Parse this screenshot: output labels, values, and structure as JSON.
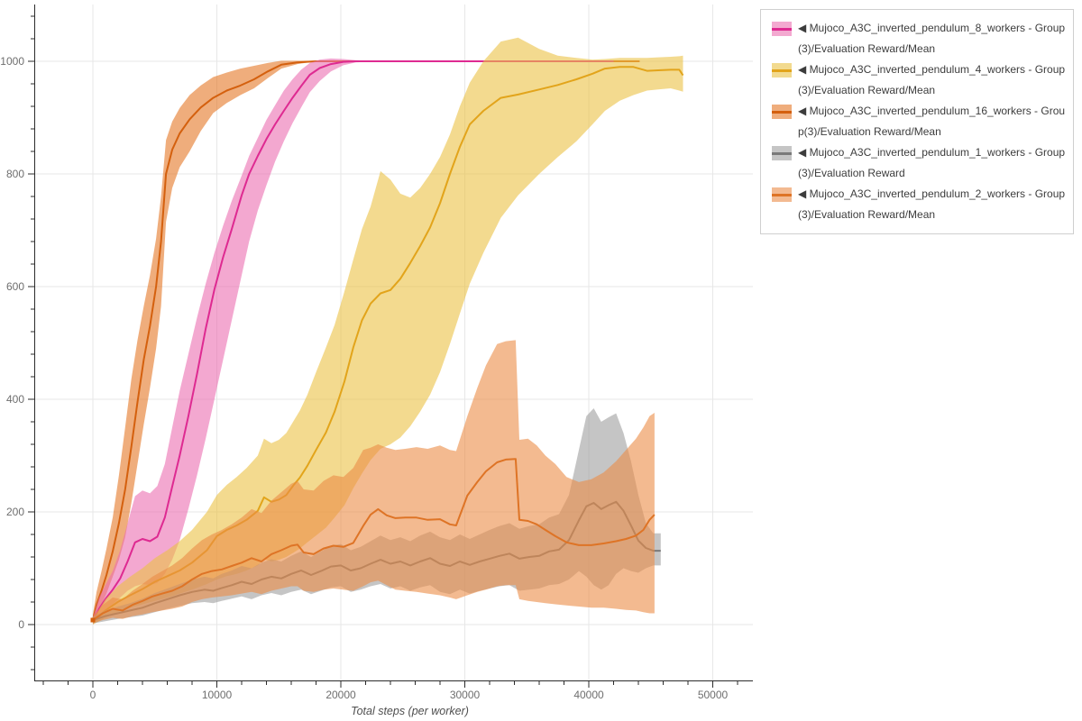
{
  "figure": {
    "background": "#ffffff",
    "grid_color": "#e7e7e7",
    "spine_color": "#2b2b2b",
    "tick_color": "#2b2b2b",
    "tick_label_color": "#6e6e6e",
    "axis_title_color": "#4f4f4f"
  },
  "legend": {
    "items": [
      {
        "id": "8_workers",
        "label": "◀ Mujoco_A3C_inverted_pendulum_8_workers - Group(3)/Evaluation Reward/Mean",
        "line_color": "#DE2A91",
        "band_color": "#F3A9D0"
      },
      {
        "id": "4_workers",
        "label": "◀ Mujoco_A3C_inverted_pendulum_4_workers - Group(3)/Evaluation Reward/Mean",
        "line_color": "#E2A41B",
        "band_color": "#F2DA8F"
      },
      {
        "id": "16_workers",
        "label": "◀ Mujoco_A3C_inverted_pendulum_16_workers - Group(3)/Evaluation Reward/Mean",
        "line_color": "#D4600E",
        "band_color": "#EFAD7C"
      },
      {
        "id": "1_workers",
        "label": "◀ Mujoco_A3C_inverted_pendulum_1_workers - Group(3)/Evaluation Reward",
        "line_color": "#7A7A7A",
        "band_color": "#C5C5C5"
      },
      {
        "id": "2_workers",
        "label": "◀ Mujoco_A3C_inverted_pendulum_2_workers - Group(3)/Evaluation Reward/Mean",
        "line_color": "#DE7426",
        "band_color": "#F3BA91"
      }
    ]
  },
  "chart_data": {
    "type": "line",
    "title": "",
    "xlabel": "Total steps (per worker)",
    "ylabel": "",
    "xlim": [
      -4700,
      53300
    ],
    "ylim": [
      -99,
      1100
    ],
    "x_ticks": [
      0,
      10000,
      20000,
      30000,
      40000,
      50000
    ],
    "x_tick_labels": [
      "0",
      "10000",
      "20000",
      "30000",
      "40000",
      "50000"
    ],
    "x_minor_step": 2000,
    "y_ticks": [
      0,
      200,
      400,
      600,
      800,
      1000
    ],
    "y_tick_labels": [
      "0",
      "200",
      "400",
      "600",
      "800",
      "1000"
    ],
    "y_minor_step": 40,
    "grid": true,
    "legend_position": "outside-right",
    "band_opacity": 0.6,
    "z_order": [
      2,
      0,
      1,
      3,
      4
    ],
    "origin_marker": {
      "x": 0,
      "y": 8,
      "color": "#D4600E"
    },
    "series": [
      {
        "id": "8_workers",
        "name": "Mujoco_A3C_inverted_pendulum_8_workers - Group(3)/Evaluation Reward/Mean",
        "color": "#DE2A91",
        "band_fill": "#EB6EB1",
        "x": [
          0,
          500,
          1000,
          1600,
          2200,
          2800,
          3400,
          4000,
          4600,
          5200,
          5800,
          6400,
          7000,
          7700,
          8400,
          9100,
          9800,
          10500,
          11200,
          12000,
          12600,
          13300,
          14000,
          14700,
          15400,
          16100,
          16800,
          17500,
          18300,
          19200,
          20200,
          21200,
          23000,
          27000,
          31000,
          35000,
          39000,
          42000
        ],
        "mean": [
          5,
          28,
          45,
          62,
          82,
          112,
          146,
          152,
          148,
          156,
          190,
          245,
          300,
          370,
          445,
          525,
          595,
          652,
          702,
          762,
          800,
          832,
          862,
          888,
          912,
          935,
          956,
          976,
          988,
          995,
          999,
          1000,
          1000,
          1000,
          1000,
          1000,
          1000,
          1000
        ],
        "low": [
          0,
          14,
          26,
          36,
          48,
          60,
          68,
          72,
          70,
          74,
          90,
          115,
          150,
          205,
          265,
          330,
          400,
          470,
          540,
          620,
          680,
          735,
          780,
          822,
          858,
          890,
          918,
          945,
          965,
          982,
          993,
          998,
          1000,
          1000,
          1000,
          1000,
          1000,
          1000
        ],
        "high": [
          12,
          48,
          70,
          95,
          132,
          180,
          228,
          238,
          233,
          246,
          285,
          350,
          415,
          480,
          545,
          605,
          660,
          708,
          752,
          797,
          832,
          864,
          896,
          922,
          948,
          968,
          985,
          997,
          1003,
          1005,
          1004,
          1002,
          1000,
          1000,
          1000,
          1000,
          1000,
          1000
        ]
      },
      {
        "id": "4_workers",
        "name": "Mujoco_A3C_inverted_pendulum_4_workers - Group(3)/Evaluation Reward/Mean",
        "color": "#E2A41B",
        "band_fill": "#EBC144",
        "x": [
          0,
          1000,
          2000,
          3000,
          4000,
          5000,
          6000,
          7000,
          8000,
          9200,
          10000,
          10800,
          11600,
          12400,
          13300,
          13800,
          14400,
          15000,
          15600,
          16200,
          16700,
          17300,
          18000,
          18800,
          19500,
          20300,
          21000,
          21700,
          22400,
          23200,
          24000,
          24800,
          25600,
          26400,
          27200,
          28000,
          28800,
          29600,
          30400,
          31500,
          32900,
          34300,
          36000,
          37500,
          39000,
          40300,
          41300,
          42500,
          43600,
          44700,
          45600,
          46600,
          47300,
          47600
        ],
        "mean": [
          5,
          25,
          40,
          52,
          63,
          76,
          86,
          96,
          110,
          132,
          157,
          168,
          176,
          186,
          202,
          226,
          218,
          222,
          230,
          248,
          261,
          282,
          310,
          341,
          378,
          432,
          492,
          540,
          570,
          588,
          594,
          614,
          642,
          672,
          705,
          748,
          800,
          848,
          888,
          912,
          935,
          941,
          950,
          958,
          968,
          978,
          987,
          990,
          990,
          983,
          984,
          985,
          985,
          975
        ],
        "low": [
          0,
          12,
          22,
          30,
          36,
          42,
          48,
          55,
          62,
          72,
          80,
          86,
          90,
          96,
          105,
          116,
          112,
          115,
          120,
          128,
          135,
          146,
          158,
          172,
          190,
          212,
          242,
          268,
          292,
          312,
          320,
          332,
          352,
          378,
          408,
          448,
          498,
          552,
          605,
          660,
          722,
          762,
          800,
          830,
          858,
          888,
          912,
          930,
          940,
          948,
          950,
          952,
          948,
          946
        ],
        "high": [
          10,
          45,
          68,
          85,
          100,
          118,
          132,
          148,
          168,
          200,
          230,
          248,
          262,
          278,
          300,
          330,
          322,
          328,
          340,
          362,
          380,
          408,
          448,
          492,
          532,
          592,
          648,
          702,
          742,
          805,
          790,
          765,
          758,
          775,
          800,
          830,
          870,
          920,
          962,
          1000,
          1035,
          1042,
          1022,
          1010,
          1006,
          1003,
          1004,
          1006,
          1006,
          1006,
          1007,
          1008,
          1009,
          1010
        ]
      },
      {
        "id": "16_workers",
        "name": "Mujoco_A3C_inverted_pendulum_16_workers - Group(3)/Evaluation Reward/Mean",
        "color": "#D4600E",
        "band_fill": "#E47625",
        "x": [
          0,
          300,
          700,
          1100,
          1600,
          2100,
          2600,
          3100,
          3600,
          4100,
          4600,
          5100,
          5500,
          5900,
          6400,
          7000,
          7800,
          8700,
          9700,
          10800,
          11900,
          13000,
          14100,
          15200,
          16500,
          18000,
          20000,
          23000,
          26000,
          30000,
          34000,
          38000,
          41000,
          44100
        ],
        "mean": [
          8,
          35,
          60,
          88,
          130,
          180,
          240,
          315,
          395,
          470,
          530,
          600,
          680,
          800,
          843,
          872,
          897,
          918,
          935,
          948,
          957,
          968,
          982,
          994,
          998,
          1000,
          1000,
          1000,
          1000,
          1000,
          1000,
          1000,
          1000,
          1000
        ],
        "low": [
          0,
          18,
          36,
          55,
          85,
          115,
          155,
          215,
          285,
          355,
          420,
          490,
          565,
          715,
          775,
          812,
          840,
          876,
          908,
          926,
          940,
          952,
          970,
          987,
          995,
          1000,
          1000,
          1000,
          1000,
          1000,
          1000,
          1000,
          1000,
          1000
        ],
        "high": [
          18,
          58,
          95,
          135,
          190,
          265,
          350,
          435,
          505,
          565,
          620,
          685,
          760,
          860,
          893,
          917,
          940,
          957,
          972,
          980,
          987,
          992,
          997,
          1001,
          1001,
          1001,
          1000,
          1000,
          1000,
          1000,
          1000,
          1000,
          1000,
          1000
        ]
      },
      {
        "id": "1_workers",
        "name": "Mujoco_A3C_inverted_pendulum_1_workers - Group(3)/Evaluation Reward",
        "color": "#7A7A7A",
        "band_fill": "#9E9E9E",
        "x": [
          0,
          1000,
          2000,
          3000,
          4000,
          5000,
          6000,
          7000,
          8000,
          9000,
          9700,
          10400,
          11200,
          12000,
          12800,
          13600,
          14400,
          15200,
          16000,
          16800,
          17600,
          18400,
          19200,
          20000,
          20800,
          21600,
          22400,
          23200,
          24000,
          24800,
          25600,
          26400,
          27200,
          28000,
          28800,
          29600,
          30400,
          31200,
          32000,
          32800,
          33600,
          34400,
          35200,
          36000,
          36800,
          37600,
          38400,
          39200,
          39800,
          40400,
          41000,
          41600,
          42200,
          42800,
          43400,
          44000,
          44600,
          45200,
          45800
        ],
        "mean": [
          8,
          15,
          20,
          25,
          30,
          38,
          45,
          52,
          58,
          62,
          60,
          65,
          70,
          76,
          72,
          80,
          85,
          82,
          90,
          96,
          88,
          95,
          103,
          105,
          96,
          100,
          108,
          115,
          108,
          112,
          105,
          112,
          118,
          108,
          104,
          112,
          106,
          112,
          117,
          122,
          126,
          117,
          120,
          122,
          130,
          133,
          150,
          185,
          210,
          216,
          205,
          212,
          218,
          202,
          176,
          149,
          136,
          131,
          131
        ],
        "low": [
          2,
          6,
          10,
          13,
          16,
          22,
          28,
          33,
          38,
          40,
          38,
          42,
          46,
          50,
          45,
          52,
          56,
          52,
          58,
          62,
          54,
          60,
          66,
          68,
          58,
          62,
          68,
          72,
          64,
          68,
          60,
          66,
          70,
          58,
          54,
          62,
          55,
          60,
          64,
          68,
          70,
          60,
          62,
          64,
          70,
          72,
          80,
          95,
          85,
          70,
          62,
          70,
          90,
          100,
          95,
          92,
          100,
          105,
          105
        ],
        "high": [
          14,
          25,
          32,
          38,
          46,
          56,
          64,
          72,
          80,
          85,
          82,
          90,
          96,
          104,
          100,
          110,
          116,
          112,
          122,
          130,
          120,
          130,
          140,
          143,
          132,
          138,
          148,
          158,
          150,
          155,
          148,
          158,
          165,
          155,
          150,
          160,
          152,
          160,
          168,
          175,
          180,
          170,
          175,
          178,
          190,
          196,
          230,
          310,
          370,
          384,
          360,
          368,
          375,
          340,
          290,
          230,
          180,
          162,
          162
        ]
      },
      {
        "id": "2_workers",
        "name": "Mujoco_A3C_inverted_pendulum_2_workers - Group(3)/Evaluation Reward/Mean",
        "color": "#DE7426",
        "band_fill": "#EB8C46",
        "x": [
          0,
          800,
          1600,
          2400,
          3200,
          4000,
          4800,
          5600,
          6400,
          7200,
          8000,
          8800,
          9600,
          10400,
          11200,
          12000,
          12800,
          13600,
          14400,
          15200,
          16000,
          16500,
          17000,
          17800,
          18600,
          19400,
          20200,
          21000,
          21800,
          22400,
          23000,
          23700,
          24400,
          25200,
          26100,
          27000,
          28000,
          28800,
          29300,
          30200,
          31000,
          31700,
          32600,
          33300,
          34100,
          34400,
          35100,
          35800,
          36500,
          37300,
          38200,
          39200,
          40200,
          41200,
          42200,
          43000,
          43800,
          44400,
          44900,
          45300
        ],
        "mean": [
          8,
          20,
          28,
          25,
          35,
          42,
          50,
          55,
          60,
          68,
          80,
          90,
          95,
          98,
          104,
          110,
          118,
          112,
          125,
          132,
          140,
          142,
          128,
          125,
          135,
          140,
          138,
          145,
          175,
          195,
          205,
          194,
          189,
          190,
          190,
          186,
          187,
          178,
          176,
          229,
          253,
          272,
          288,
          293,
          294,
          186,
          184,
          178,
          168,
          157,
          146,
          141,
          141,
          144,
          148,
          152,
          158,
          168,
          186,
          195
        ],
        "low": [
          2,
          8,
          12,
          10,
          15,
          18,
          22,
          25,
          28,
          32,
          40,
          45,
          48,
          50,
          52,
          55,
          58,
          54,
          60,
          64,
          68,
          68,
          60,
          58,
          62,
          64,
          62,
          60,
          68,
          75,
          78,
          70,
          62,
          60,
          58,
          55,
          52,
          48,
          45,
          52,
          58,
          62,
          68,
          70,
          70,
          45,
          42,
          40,
          38,
          36,
          34,
          32,
          30,
          30,
          28,
          26,
          25,
          22,
          20,
          20
        ],
        "high": [
          14,
          35,
          48,
          45,
          60,
          72,
          85,
          95,
          105,
          118,
          135,
          150,
          160,
          168,
          178,
          190,
          205,
          198,
          220,
          235,
          250,
          255,
          240,
          238,
          255,
          265,
          262,
          278,
          310,
          314,
          320,
          314,
          310,
          312,
          315,
          312,
          318,
          310,
          308,
          370,
          420,
          460,
          498,
          503,
          505,
          328,
          330,
          318,
          300,
          285,
          262,
          253,
          258,
          270,
          290,
          310,
          330,
          350,
          370,
          376
        ]
      }
    ]
  }
}
